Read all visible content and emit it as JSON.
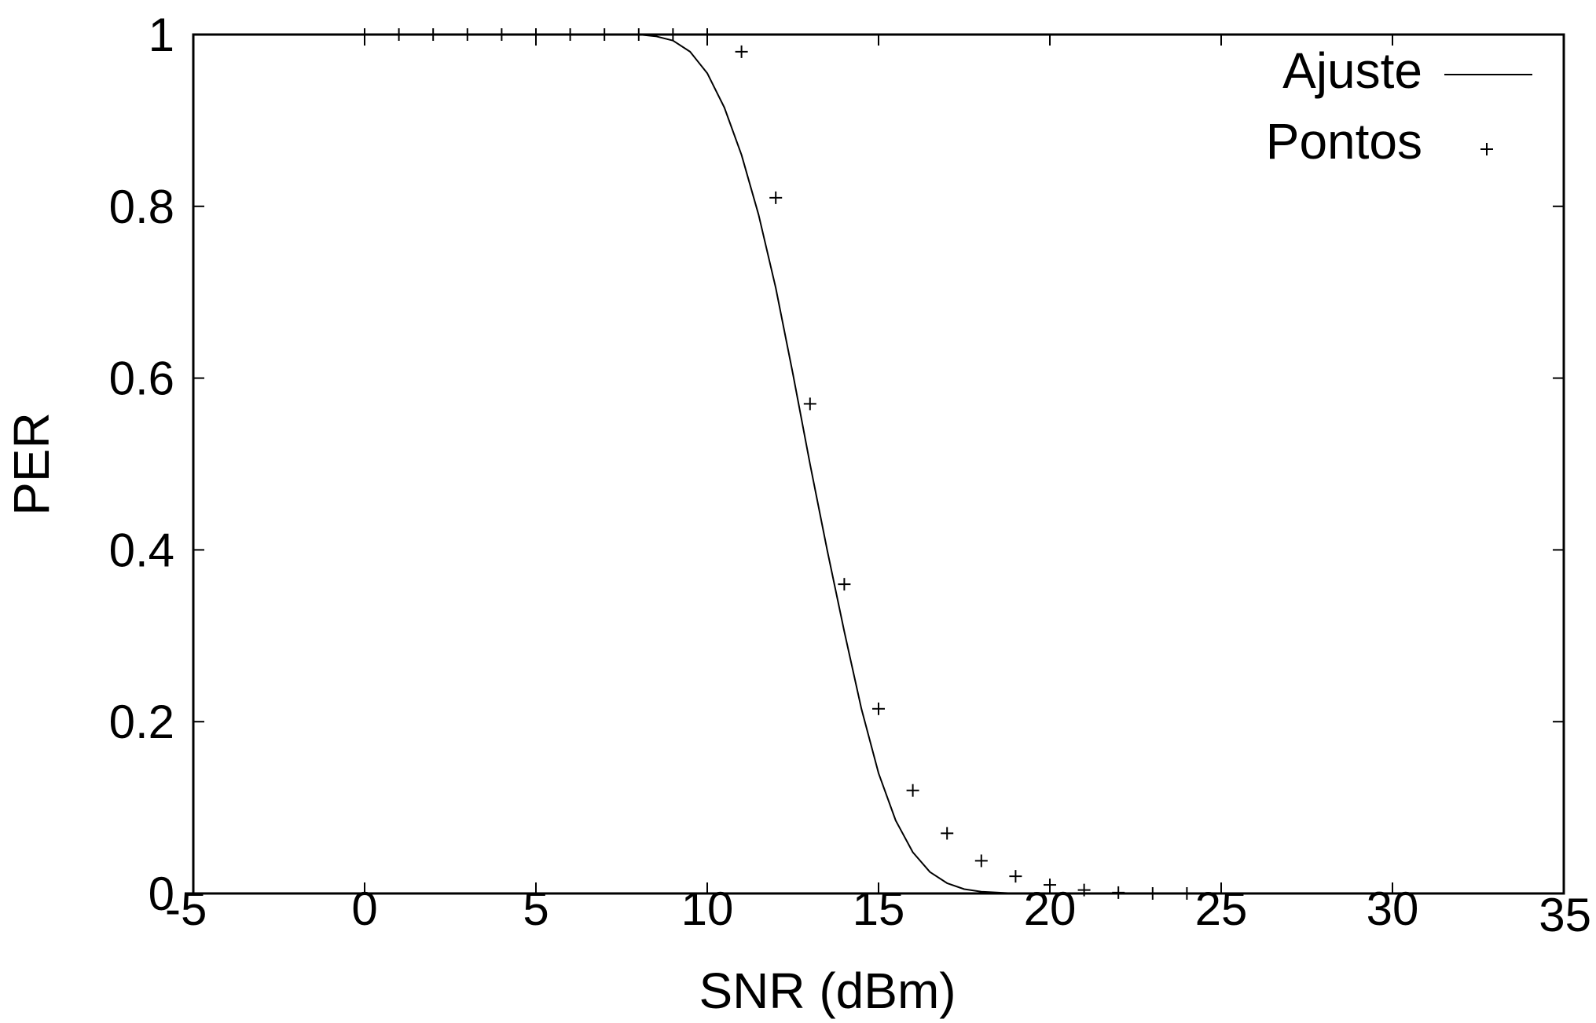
{
  "chart_data": {
    "type": "line",
    "xlabel": "SNR (dBm)",
    "ylabel": "PER",
    "xlim": [
      -5,
      35
    ],
    "ylim": [
      0,
      1
    ],
    "xticks": [
      -5,
      0,
      5,
      10,
      15,
      20,
      25,
      30,
      35
    ],
    "yticks": [
      0,
      0.2,
      0.4,
      0.6,
      0.8,
      1
    ],
    "xtick_labels": [
      "-5",
      "0",
      "5",
      "10",
      "15",
      "20",
      "25",
      "30",
      "35"
    ],
    "ytick_labels": [
      "0",
      "0.2",
      "0.4",
      "0.6",
      "0.8",
      "1"
    ],
    "grid": false,
    "legend_position": "top-right",
    "series": [
      {
        "name": "Ajuste",
        "style": "line",
        "x": [
          0,
          1,
          2,
          3,
          4,
          5,
          6,
          7,
          8,
          8.5,
          9,
          9.5,
          10,
          10.5,
          11,
          11.5,
          12,
          12.5,
          13,
          13.5,
          14,
          14.5,
          15,
          15.5,
          16,
          16.5,
          17,
          17.5,
          18,
          18.5,
          19,
          20,
          21,
          22,
          23,
          24
        ],
        "y": [
          1,
          1,
          1,
          1,
          1,
          1,
          1,
          1,
          1,
          0.998,
          0.993,
          0.98,
          0.955,
          0.915,
          0.86,
          0.79,
          0.705,
          0.605,
          0.5,
          0.4,
          0.305,
          0.215,
          0.14,
          0.085,
          0.048,
          0.025,
          0.012,
          0.005,
          0.002,
          0.001,
          0,
          0,
          0,
          0,
          0,
          0
        ]
      },
      {
        "name": "Pontos",
        "style": "plus",
        "x": [
          0,
          1,
          2,
          3,
          4,
          5,
          6,
          7,
          8,
          9,
          10,
          11,
          12,
          13,
          14,
          15,
          16,
          17,
          18,
          19,
          20,
          21,
          22,
          23,
          24
        ],
        "y": [
          1,
          1,
          1,
          1,
          1,
          1,
          1,
          1,
          1,
          1,
          1,
          0.98,
          0.81,
          0.57,
          0.36,
          0.215,
          0.12,
          0.07,
          0.038,
          0.02,
          0.01,
          0.004,
          0.001,
          0,
          0
        ]
      }
    ]
  }
}
